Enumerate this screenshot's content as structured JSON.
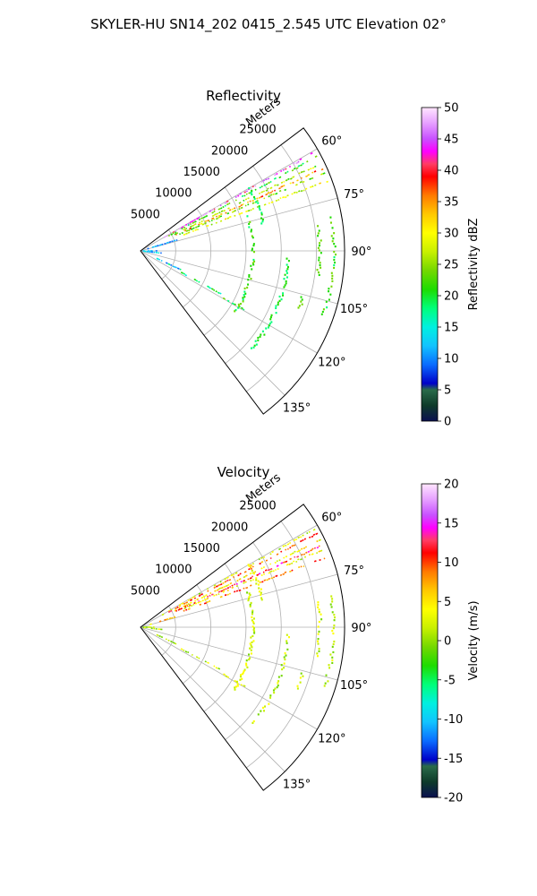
{
  "figure": {
    "suptitle": "SKYLER-HU  SN14_202  0415_2.545 UTC Elevation 02°"
  },
  "chart_data": [
    {
      "type": "polar-ppi",
      "title": "Reflectivity",
      "radial_axis_label": "Meters",
      "r_ticks": [
        5000,
        10000,
        15000,
        20000,
        25000
      ],
      "r_tick_labels": [
        "5000",
        "10000",
        "15000",
        "20000",
        "25000"
      ],
      "r_max": 29000,
      "theta_range_deg": [
        53,
        143
      ],
      "theta_ticks": [
        "60°",
        "75°",
        "90°",
        "105°",
        "120°",
        "135°"
      ],
      "grid": true,
      "colorbar": {
        "label": "Reflectivity dBZ",
        "vmin": 0,
        "vmax": 50,
        "ticks": [
          0,
          5,
          10,
          15,
          20,
          25,
          30,
          35,
          40,
          45,
          50
        ]
      },
      "features": [
        {
          "az": 60.5,
          "r0": 3500,
          "r1": 28500,
          "level": 44
        },
        {
          "az": 62.0,
          "r0": 4500,
          "r1": 28500,
          "level": 20
        },
        {
          "az": 64.2,
          "r0": 5000,
          "r1": 28500,
          "level": 24
        },
        {
          "az": 65.8,
          "r0": 5500,
          "r1": 28500,
          "level": 33
        },
        {
          "az": 67.0,
          "r0": 6000,
          "r1": 28500,
          "level": 22
        },
        {
          "az": 69.5,
          "r0": 6500,
          "r1": 28500,
          "level": 27
        },
        {
          "az": 73.5,
          "r0": 1000,
          "r1": 6000,
          "level": 9
        },
        {
          "az": 90.0,
          "r0": 300,
          "r1": 2500,
          "level": 8
        },
        {
          "az": 96.0,
          "r0": 500,
          "r1": 3500,
          "level": 10
        },
        {
          "az": 115.0,
          "r0": 2500,
          "r1": 6500,
          "level": 12
        },
        {
          "az": 118.0,
          "r0": 6500,
          "r1": 13500,
          "level": 17
        },
        {
          "az": 119.5,
          "r0": 13500,
          "r1": 17500,
          "level": 19
        }
      ],
      "arcs": [
        {
          "r": 16000,
          "az0": 72,
          "az1": 125,
          "level": 20
        },
        {
          "r": 17800,
          "az0": 60,
          "az1": 78,
          "level": 18
        },
        {
          "r": 21000,
          "az0": 93,
          "az1": 132,
          "level": 18
        },
        {
          "r": 25500,
          "az0": 82,
          "az1": 100,
          "level": 21
        },
        {
          "r": 27500,
          "az0": 80,
          "az1": 110,
          "level": 20
        },
        {
          "r": 24000,
          "az0": 106,
          "az1": 112,
          "level": 22
        }
      ]
    },
    {
      "type": "polar-ppi",
      "title": "Velocity",
      "radial_axis_label": "Meters",
      "r_ticks": [
        5000,
        10000,
        15000,
        20000,
        25000
      ],
      "r_tick_labels": [
        "5000",
        "10000",
        "15000",
        "20000",
        "25000"
      ],
      "r_max": 29000,
      "theta_range_deg": [
        53,
        143
      ],
      "theta_ticks": [
        "60°",
        "75°",
        "90°",
        "105°",
        "120°",
        "135°"
      ],
      "grid": true,
      "colorbar": {
        "label": "Velocity (m/s)",
        "vmin": -20,
        "vmax": 20,
        "ticks": [
          -20,
          -15,
          -10,
          -5,
          0,
          5,
          10,
          15,
          20
        ]
      },
      "features": [
        {
          "az": 60.5,
          "r0": 3500,
          "r1": 28500,
          "level": 1
        },
        {
          "az": 62.0,
          "r0": 4500,
          "r1": 28500,
          "level": 9
        },
        {
          "az": 64.2,
          "r0": 5000,
          "r1": 28500,
          "level": 3
        },
        {
          "az": 65.8,
          "r0": 5500,
          "r1": 28500,
          "level": 11
        },
        {
          "az": 67.0,
          "r0": 6000,
          "r1": 28500,
          "level": 2
        },
        {
          "az": 69.5,
          "r0": 6500,
          "r1": 28500,
          "level": 8
        },
        {
          "az": 73.5,
          "r0": 1000,
          "r1": 6000,
          "level": 5
        },
        {
          "az": 90.0,
          "r0": 300,
          "r1": 2500,
          "level": 1
        },
        {
          "az": 96.0,
          "r0": 500,
          "r1": 3500,
          "level": 1
        },
        {
          "az": 115.0,
          "r0": 2500,
          "r1": 6500,
          "level": 0
        },
        {
          "az": 118.0,
          "r0": 6500,
          "r1": 13500,
          "level": 1
        },
        {
          "az": 119.5,
          "r0": 13500,
          "r1": 17500,
          "level": 1
        }
      ],
      "arcs": [
        {
          "r": 16000,
          "az0": 72,
          "az1": 125,
          "level": 1
        },
        {
          "r": 17800,
          "az0": 60,
          "az1": 78,
          "level": 2
        },
        {
          "r": 21000,
          "az0": 93,
          "az1": 132,
          "level": 0
        },
        {
          "r": 25500,
          "az0": 82,
          "az1": 100,
          "level": 1
        },
        {
          "r": 27500,
          "az0": 80,
          "az1": 110,
          "level": 0
        },
        {
          "r": 24000,
          "az0": 106,
          "az1": 112,
          "level": 1
        }
      ]
    }
  ]
}
